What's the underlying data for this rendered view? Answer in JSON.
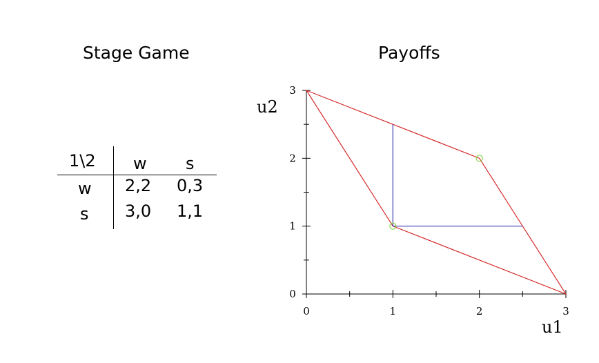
{
  "headings": {
    "stage_game": "Stage Game",
    "payoffs": "Payoffs"
  },
  "payoff_matrix": {
    "corner": "1\\2",
    "columns": [
      "w",
      "s"
    ],
    "rows": [
      {
        "label": "w",
        "cells": [
          "2,2",
          "0,3"
        ]
      },
      {
        "label": "s",
        "cells": [
          "3,0",
          "1,1"
        ]
      }
    ]
  },
  "chart_data": {
    "type": "line",
    "title": "Payoffs",
    "xlabel": "u1",
    "ylabel": "u2",
    "xlim": [
      0,
      3
    ],
    "ylim": [
      0,
      3
    ],
    "x_ticks": [
      0,
      1,
      2,
      3
    ],
    "y_ticks": [
      0,
      1,
      2,
      3
    ],
    "minor_tick_step": 0.5,
    "grid": false,
    "series": [
      {
        "color": "#d42a2a",
        "closed": true,
        "x": [
          0,
          2,
          3,
          1
        ],
        "y": [
          3,
          2,
          0,
          1
        ]
      },
      {
        "color": "#3b3bb8",
        "closed": false,
        "x": [
          1,
          1,
          2.5
        ],
        "y": [
          2.5,
          1,
          1
        ]
      }
    ],
    "markers": {
      "color": "#86d64a",
      "x": [
        1,
        2
      ],
      "y": [
        1,
        2
      ]
    }
  }
}
